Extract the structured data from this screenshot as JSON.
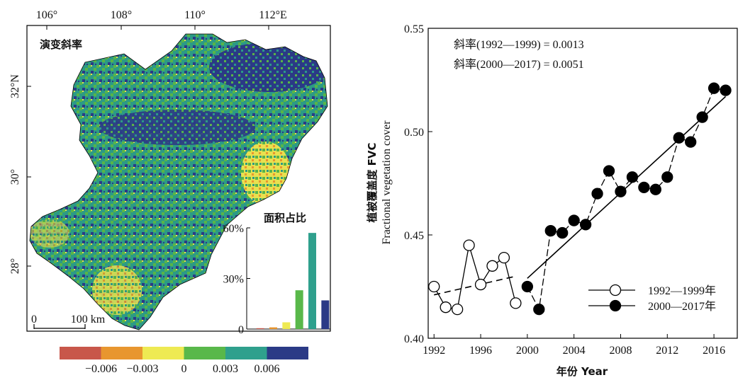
{
  "map": {
    "title": "演变斜率",
    "lon_ticks": [
      "106°",
      "108°",
      "110°",
      "112°E"
    ],
    "lat_ticks": [
      "32°N",
      "30°",
      "28°"
    ],
    "scale_bar": {
      "zero": "0",
      "label": "100 km"
    }
  },
  "colorbar": {
    "colors": [
      "#c8574a",
      "#e8962f",
      "#eeea53",
      "#59b84a",
      "#2fa08d",
      "#2b3a86"
    ],
    "labels": [
      "−0.006",
      "−0.003",
      "0",
      "0.003",
      "0.006"
    ]
  },
  "inset": {
    "title": "面积占比",
    "y_ticks": [
      "60%",
      "30%",
      "0"
    ]
  },
  "chart_data": [
    {
      "type": "bar",
      "title": "面积占比",
      "categories": [
        "",
        "",
        "",
        "",
        "",
        ""
      ],
      "values": [
        0.5,
        1,
        4,
        23,
        57,
        17
      ],
      "colors": [
        "#c8574a",
        "#e8962f",
        "#eeea53",
        "#59b84a",
        "#2fa08d",
        "#2b3a86"
      ],
      "ylim": [
        0,
        60
      ],
      "yticks": [
        0,
        30,
        60
      ]
    },
    {
      "type": "line",
      "ylabel_cn": "植被覆盖度 FVC",
      "ylabel_en": "Fractional vegetation cover",
      "xlabel": "年份 Year",
      "xlim": [
        1991.5,
        2018
      ],
      "ylim": [
        0.4,
        0.55
      ],
      "xticks": [
        "1992",
        "1996",
        "2000",
        "2004",
        "2008",
        "2012",
        "2016"
      ],
      "yticks": [
        "0.40",
        "0.45",
        "0.50",
        "0.55"
      ],
      "annotations": [
        "斜率(1992—1999) = 0.0013",
        "斜率(2000—2017) = 0.0051"
      ],
      "series": [
        {
          "name": "1992—1999年",
          "marker": "open",
          "x": [
            1992,
            1993,
            1994,
            1995,
            1996,
            1997,
            1998,
            1999
          ],
          "y": [
            0.425,
            0.415,
            0.414,
            0.445,
            0.426,
            0.435,
            0.439,
            0.417
          ],
          "trend": [
            [
              1992,
              0.421
            ],
            [
              1999,
              0.43
            ]
          ]
        },
        {
          "name": "2000—2017年",
          "marker": "filled",
          "x": [
            2000,
            2001,
            2002,
            2003,
            2004,
            2005,
            2006,
            2007,
            2008,
            2009,
            2010,
            2011,
            2012,
            2013,
            2014,
            2015,
            2016,
            2017
          ],
          "y": [
            0.425,
            0.414,
            0.452,
            0.451,
            0.457,
            0.455,
            0.47,
            0.481,
            0.471,
            0.478,
            0.473,
            0.472,
            0.478,
            0.497,
            0.495,
            0.507,
            0.521,
            0.52
          ],
          "trend": [
            [
              2000,
              0.429
            ],
            [
              2017,
              0.517
            ]
          ]
        }
      ]
    }
  ]
}
